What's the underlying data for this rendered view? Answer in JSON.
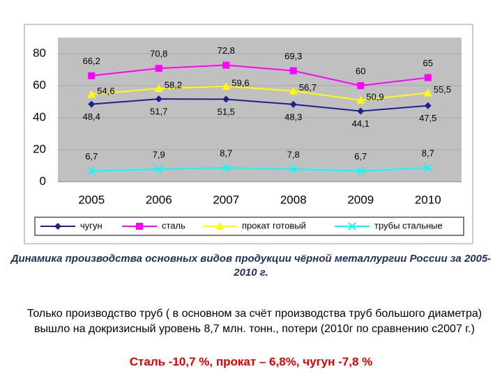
{
  "chart_data": {
    "type": "line",
    "categories": [
      "2005",
      "2006",
      "2007",
      "2008",
      "2009",
      "2010"
    ],
    "series": [
      {
        "name": "чугун",
        "color": "#1f1f8f",
        "marker": "diamond",
        "label_position": "below",
        "values": [
          48.4,
          51.7,
          51.5,
          48.3,
          44.1,
          47.5
        ],
        "value_labels": [
          "48,4",
          "51,7",
          "51,5",
          "48,3",
          "44,1",
          "47,5"
        ]
      },
      {
        "name": "сталь",
        "color": "#ff00ff",
        "marker": "square",
        "label_position": "above",
        "values": [
          66.2,
          70.8,
          72.8,
          69.3,
          60,
          65
        ],
        "value_labels": [
          "66,2",
          "70,8",
          "72,8",
          "69,3",
          "60",
          "65"
        ]
      },
      {
        "name": "прокат готовый",
        "color": "#ffff00",
        "marker": "triangle",
        "label_position": "right",
        "values": [
          54.6,
          58.2,
          59.6,
          56.7,
          50.9,
          55.5
        ],
        "value_labels": [
          "54,6",
          "58,2",
          "59,6",
          "56,7",
          "50,9",
          "55,5"
        ]
      },
      {
        "name": "трубы стальные",
        "color": "#00ffff",
        "marker": "x",
        "label_position": "above",
        "values": [
          6.7,
          7.9,
          8.7,
          7.8,
          6.7,
          8.7
        ],
        "value_labels": [
          "6,7",
          "7,9",
          "8,7",
          "7,8",
          "6,7",
          "8,7"
        ]
      }
    ],
    "ylim": [
      0,
      90
    ],
    "yticks": [
      0,
      20,
      40,
      60,
      80
    ],
    "grid": true,
    "legend": "bottom"
  },
  "caption": "Динамика производства основных видов продукции чёрной металлургии России за 2005-2010 г.",
  "note": "Только производство труб ( в основном за счёт производства труб большого диаметра) вышло на докризисный уровень 8,7 млн. тонн., потери (2010г по сравнению с2007 г.)",
  "highlight": "Сталь -10,7 %,  прокат – 6,8%, чугун -7,8 %"
}
